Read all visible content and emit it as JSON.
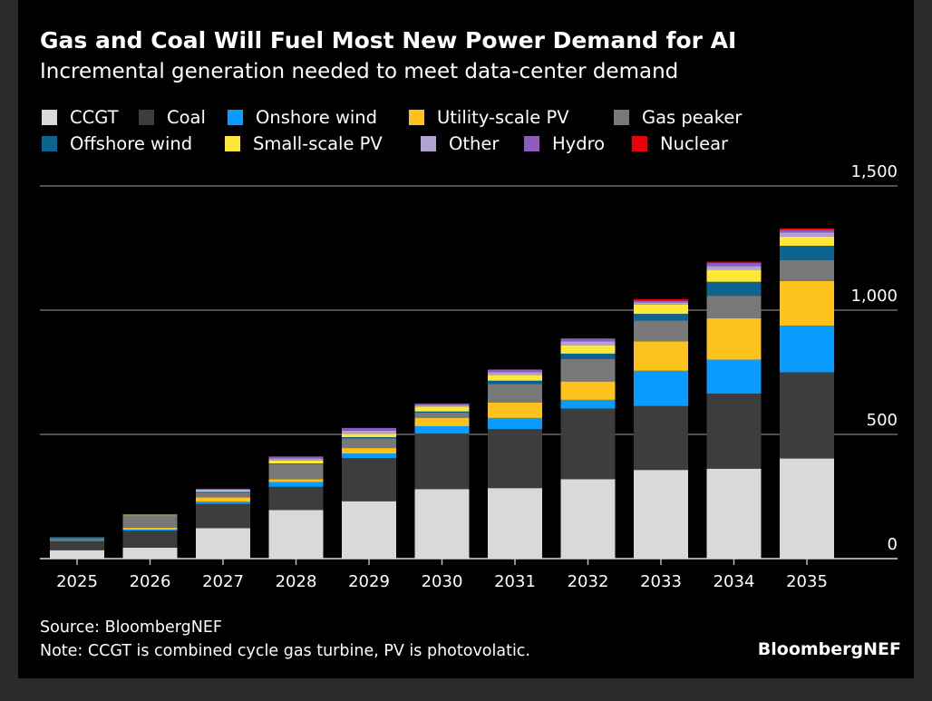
{
  "chart_data": {
    "type": "bar",
    "stacked": true,
    "title": "Gas and Coal Will Fuel Most New Power Demand for AI",
    "subtitle": "Incremental generation needed to meet data-center demand",
    "categories": [
      "2025",
      "2026",
      "2027",
      "2028",
      "2029",
      "2030",
      "2031",
      "2032",
      "2033",
      "2034",
      "2035"
    ],
    "series": [
      {
        "name": "CCGT",
        "color": "#d9d9d9",
        "values": [
          34,
          44,
          123,
          196,
          231,
          280,
          284,
          320,
          357,
          362,
          403
        ]
      },
      {
        "name": "Coal",
        "color": "#3d3d3d",
        "values": [
          36,
          69,
          97,
          93,
          174,
          223,
          237,
          284,
          257,
          302,
          347
        ]
      },
      {
        "name": "Onshore wind",
        "color": "#0a9bff",
        "values": [
          2,
          4,
          9,
          19,
          18,
          30,
          45,
          35,
          142,
          137,
          188
        ]
      },
      {
        "name": "Utility-scale PV",
        "color": "#fdc31c",
        "values": [
          2,
          8,
          18,
          12,
          22,
          34,
          62,
          74,
          119,
          166,
          179
        ]
      },
      {
        "name": "Gas peaker",
        "color": "#787878",
        "values": [
          8,
          49,
          21,
          61,
          39,
          21,
          75,
          91,
          84,
          91,
          85
        ]
      },
      {
        "name": "Offshore wind",
        "color": "#0e6490",
        "values": [
          5,
          0,
          2,
          2,
          5,
          4,
          13,
          21,
          26,
          56,
          57
        ]
      },
      {
        "name": "Small-scale PV",
        "color": "#ffe83a",
        "values": [
          0,
          2,
          4,
          12,
          13,
          20,
          24,
          34,
          38,
          49,
          37
        ]
      },
      {
        "name": "Other",
        "color": "#b0a3d4",
        "values": [
          0,
          2,
          4,
          8,
          13,
          6,
          10,
          15,
          9,
          15,
          16
        ]
      },
      {
        "name": "Hydro",
        "color": "#8e5bbf",
        "values": [
          0,
          0,
          3,
          8,
          11,
          6,
          11,
          12,
          6,
          12,
          12
        ]
      },
      {
        "name": "Nuclear",
        "color": "#e8000b",
        "values": [
          0,
          0,
          0,
          0,
          0,
          0,
          0,
          0,
          6,
          5,
          5
        ]
      }
    ],
    "ylim": [
      0,
      1500
    ],
    "yticks": [
      "0",
      "500",
      "1,000",
      "1,500"
    ],
    "ytick_values": [
      0,
      500,
      1000,
      1500
    ],
    "y_axis_side": "right",
    "grid": true,
    "legend": "top",
    "xlabel": "",
    "ylabel": ""
  },
  "footer": {
    "source": "Source: BloombergNEF",
    "note": "Note: CCGT is combined cycle gas turbine, PV is photovolatic.",
    "logo": "BloombergNEF"
  }
}
